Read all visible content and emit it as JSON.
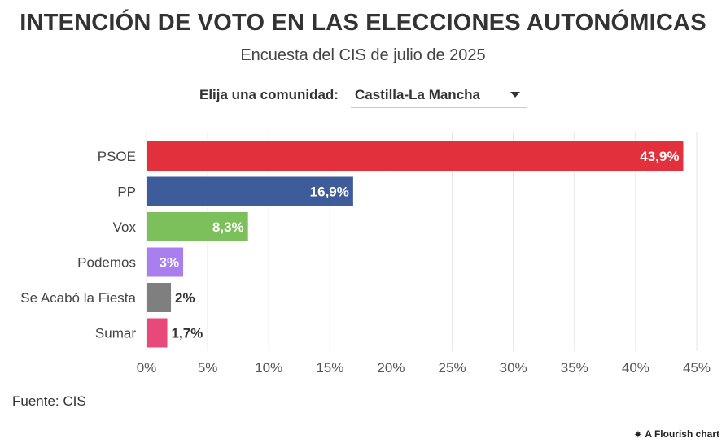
{
  "header": {
    "title": "INTENCIÓN DE VOTO EN LAS ELECCIONES AUTONÓMICAS",
    "subtitle": "Encuesta del CIS de julio de 2025"
  },
  "selector": {
    "label": "Elija una comunidad:",
    "value": "Castilla-La Mancha"
  },
  "chart_data": {
    "type": "bar",
    "orientation": "horizontal",
    "title": "INTENCIÓN DE VOTO EN LAS ELECCIONES AUTONÓMICAS",
    "subtitle": "Encuesta del CIS de julio de 2025",
    "categories": [
      "PSOE",
      "PP",
      "Vox",
      "Podemos",
      "Se Acabó la Fiesta",
      "Sumar"
    ],
    "values": [
      43.9,
      16.9,
      8.3,
      3,
      2,
      1.7
    ],
    "labels": [
      "43,9%",
      "16,9%",
      "8,3%",
      "3%",
      "2%",
      "1,7%"
    ],
    "colors": [
      "#e3303d",
      "#3e5c99",
      "#7cc05c",
      "#a97ff0",
      "#7f7f7f",
      "#e9497a"
    ],
    "xlim": [
      0,
      45
    ],
    "xticks": [
      0,
      5,
      10,
      15,
      20,
      25,
      30,
      35,
      40,
      45
    ],
    "xtick_labels": [
      "0%",
      "5%",
      "10%",
      "15%",
      "20%",
      "25%",
      "30%",
      "35%",
      "40%",
      "45%"
    ],
    "xlabel": "",
    "ylabel": "",
    "grid": true
  },
  "footer": {
    "source": "Fuente: CIS",
    "credit": "A Flourish chart",
    "credit_icon": "flourish-icon"
  }
}
